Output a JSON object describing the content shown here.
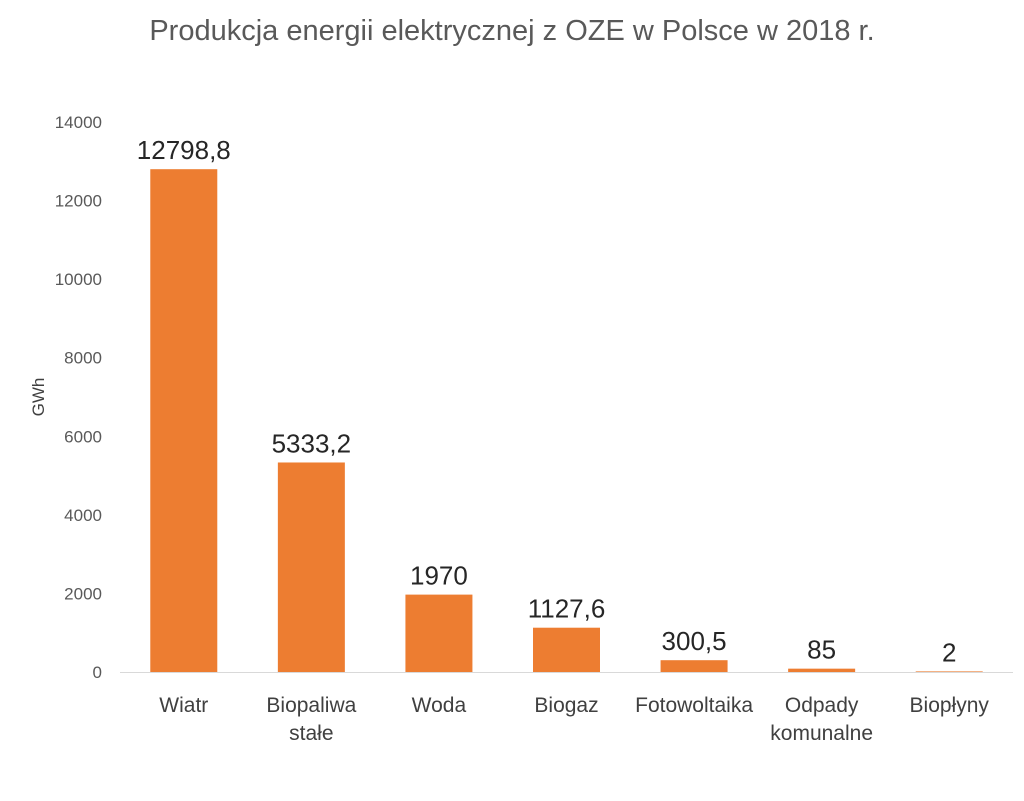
{
  "chart_data": {
    "type": "bar",
    "title": "Produkcja energii elektrycznej z OZE w Polsce w 2018 r.",
    "xlabel": "",
    "ylabel": "GWh",
    "ylim": [
      0,
      14000
    ],
    "yticks": [
      "0",
      "2000",
      "4000",
      "6000",
      "8000",
      "10000",
      "12000",
      "14000"
    ],
    "categories": [
      [
        "Wiatr"
      ],
      [
        "Biopaliwa",
        "stałe"
      ],
      [
        "Woda"
      ],
      [
        "Biogaz"
      ],
      [
        "Fotowoltaika"
      ],
      [
        "Odpady",
        "komunalne"
      ],
      [
        "Biopłyny"
      ]
    ],
    "values": [
      12798.8,
      5333.2,
      1970,
      1127.6,
      300.5,
      85,
      2
    ],
    "data_labels": [
      "12798,8",
      "5333,2",
      "1970",
      "1127,6",
      "300,5",
      "85",
      "2"
    ],
    "grid": false,
    "legend": "none",
    "bar_color": "#ED7D31",
    "axis_color": "#D9D9D9"
  }
}
